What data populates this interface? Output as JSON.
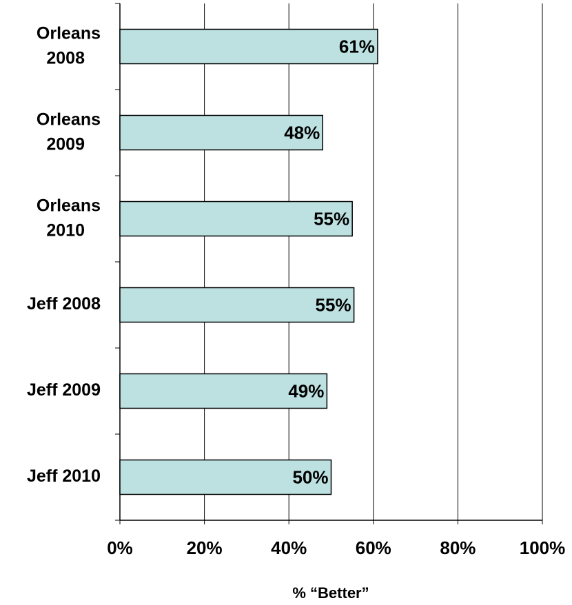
{
  "chart_data": {
    "type": "bar",
    "orientation": "horizontal",
    "x_label": "% “Better”",
    "categories": [
      "Orleans 2008",
      "Orleans 2009",
      "Orleans 2010",
      "Jeff 2008",
      "Jeff 2009",
      "Jeff 2010"
    ],
    "values": [
      61,
      48,
      55,
      55.4,
      49,
      50
    ],
    "value_labels": [
      "61%",
      "48%",
      "55%",
      "55%",
      "49%",
      "50%"
    ],
    "color": "#bde1e1",
    "xlim": [
      0,
      100
    ],
    "xticks": [
      {
        "value": 0,
        "label": "0%"
      },
      {
        "value": 20,
        "label": "20%"
      },
      {
        "value": 40,
        "label": "40%"
      },
      {
        "value": 60,
        "label": "60%"
      },
      {
        "value": 80,
        "label": "80%"
      },
      {
        "value": 100,
        "label": "100%"
      }
    ],
    "grid": true
  }
}
